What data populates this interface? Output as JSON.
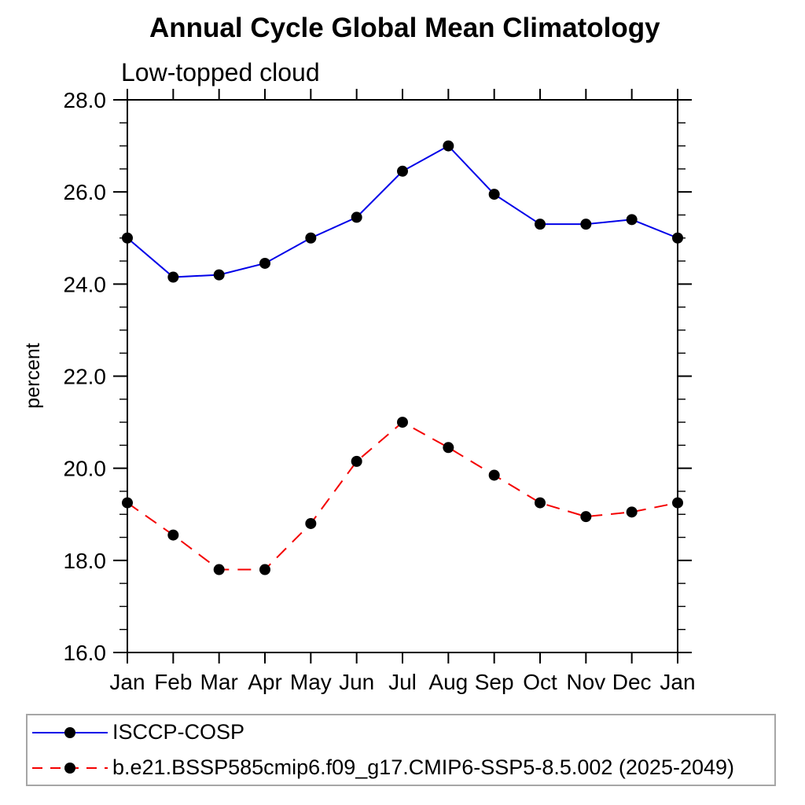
{
  "chart_data": {
    "type": "line",
    "title": "Annual Cycle Global Mean Climatology",
    "subtitle": "Low-topped cloud",
    "ylabel": "percent",
    "xlabel": "",
    "categories": [
      "Jan",
      "Feb",
      "Mar",
      "Apr",
      "May",
      "Jun",
      "Jul",
      "Aug",
      "Sep",
      "Oct",
      "Nov",
      "Dec",
      "Jan"
    ],
    "ylim": [
      16.0,
      28.0
    ],
    "ytick_major": [
      16.0,
      18.0,
      20.0,
      22.0,
      24.0,
      26.0,
      28.0
    ],
    "ytick_labels": [
      "16.0",
      "18.0",
      "20.0",
      "22.0",
      "24.0",
      "26.0",
      "28.0"
    ],
    "ytick_minor_step": 0.5,
    "grid": false,
    "legend_position": "bottom-left-box",
    "axis_color": "#000000",
    "marker_color": "#000000",
    "series": [
      {
        "name": "ISCCP-COSP",
        "color": "#0000e8",
        "line_style": "solid",
        "marker": "filled-circle",
        "values": [
          25.0,
          24.15,
          24.2,
          24.45,
          25.0,
          25.45,
          26.45,
          27.0,
          25.95,
          25.3,
          25.3,
          25.4,
          25.0
        ]
      },
      {
        "name": "b.e21.BSSP585cmip6.f09_g17.CMIP6-SSP5-8.5.002 (2025-2049)",
        "color": "#f40000",
        "line_style": "dashed",
        "marker": "filled-circle",
        "values": [
          19.25,
          18.55,
          17.8,
          17.8,
          18.8,
          20.15,
          21.0,
          20.45,
          19.85,
          19.25,
          18.95,
          19.05,
          19.25
        ]
      }
    ]
  },
  "legend": {
    "items": [
      {
        "label": "ISCCP-COSP"
      },
      {
        "label": "b.e21.BSSP585cmip6.f09_g17.CMIP6-SSP5-8.5.002 (2025-2049)"
      }
    ]
  }
}
